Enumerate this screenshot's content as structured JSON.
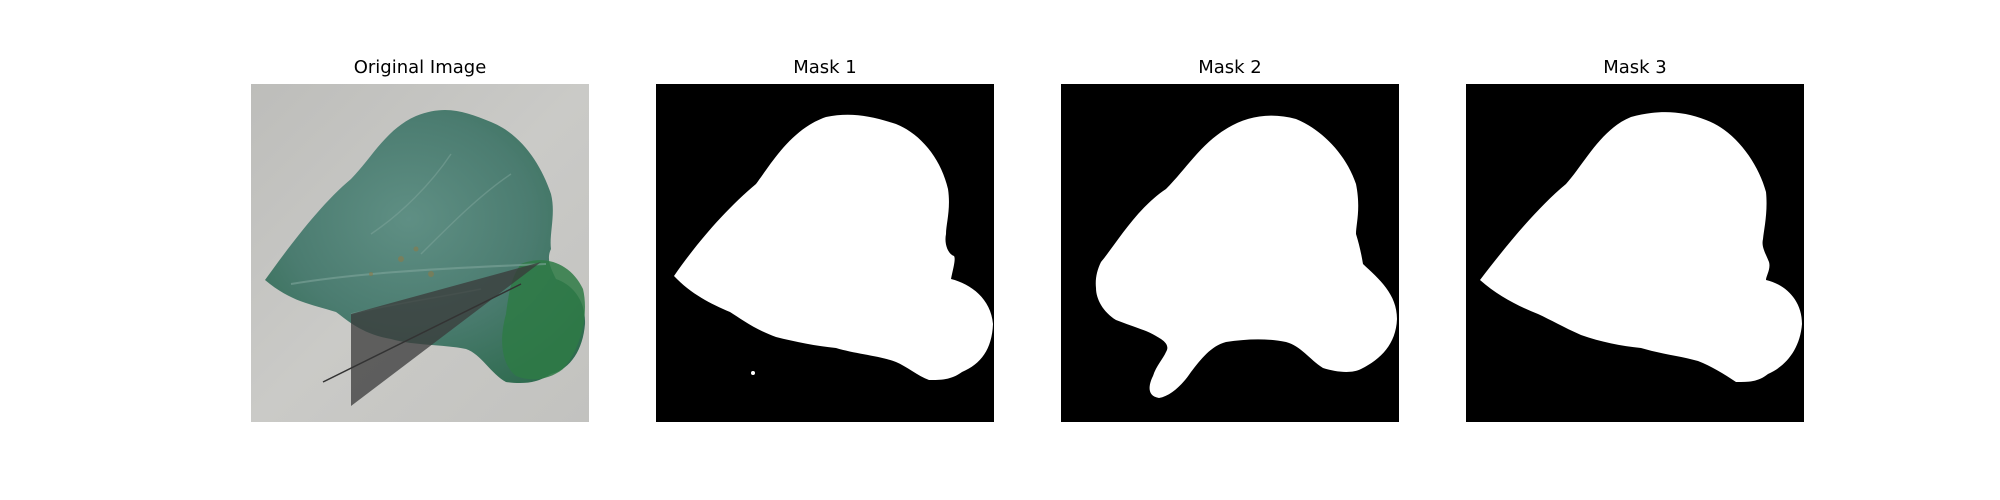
{
  "panels": [
    {
      "title": "Original Image"
    },
    {
      "title": "Mask 1"
    },
    {
      "title": "Mask 2"
    },
    {
      "title": "Mask 3"
    }
  ],
  "colors": {
    "mask_background": "#000000",
    "mask_foreground": "#ffffff",
    "photo_background": "#c9c9c6",
    "leaf_green": "#4f8476"
  }
}
